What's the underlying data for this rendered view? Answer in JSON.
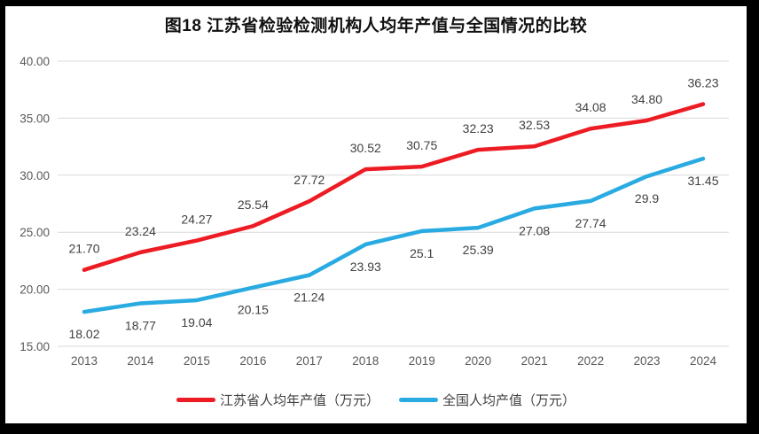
{
  "title": "图18  江苏省检验检测机构人均年产值与全国情况的比较",
  "colors": {
    "frame_border": "#000000",
    "canvas_background": "#ffffff",
    "gridline": "#d9d9d9",
    "axis_text": "#595959",
    "data_label_text": "#404040",
    "jiangsu_line": "#ED1C24",
    "national_line": "#29ABE2"
  },
  "legend": {
    "items": [
      {
        "label": "江苏省人均年产值（万元）",
        "color": "#ED1C24"
      },
      {
        "label": "全国人均产值（万元）",
        "color": "#29ABE2"
      }
    ]
  },
  "chart_data": {
    "type": "line",
    "title": "图18  江苏省检验检测机构人均年产值与全国情况的比较",
    "x": [
      "2013",
      "2014",
      "2015",
      "2016",
      "2017",
      "2018",
      "2019",
      "2020",
      "2021",
      "2022",
      "2023",
      "2024"
    ],
    "xlabel": "",
    "ylabel": "",
    "ylim": [
      15,
      40
    ],
    "y_ticks": [
      "40.00",
      "35.00",
      "30.00",
      "25.00",
      "20.00",
      "15.00"
    ],
    "grid": true,
    "legend_position": "bottom",
    "series": [
      {
        "name": "江苏省人均年产值（万元）",
        "color": "#ED1C24",
        "values": [
          21.7,
          23.24,
          24.27,
          25.54,
          27.72,
          30.52,
          30.75,
          32.23,
          32.53,
          34.08,
          34.8,
          36.23
        ],
        "labels": [
          "21.70",
          "23.24",
          "24.27",
          "25.54",
          "27.72",
          "30.52",
          "30.75",
          "32.23",
          "32.53",
          "34.08",
          "34.80",
          "36.23"
        ],
        "label_position": "above"
      },
      {
        "name": "全国人均产值（万元）",
        "color": "#29ABE2",
        "values": [
          18.02,
          18.77,
          19.04,
          20.15,
          21.24,
          23.93,
          25.1,
          25.39,
          27.08,
          27.74,
          29.9,
          31.45
        ],
        "labels": [
          "18.02",
          "18.77",
          "19.04",
          "20.15",
          "21.24",
          "23.93",
          "25.1",
          "25.39",
          "27.08",
          "27.74",
          "29.9",
          "31.45"
        ],
        "label_position": "below"
      }
    ]
  }
}
